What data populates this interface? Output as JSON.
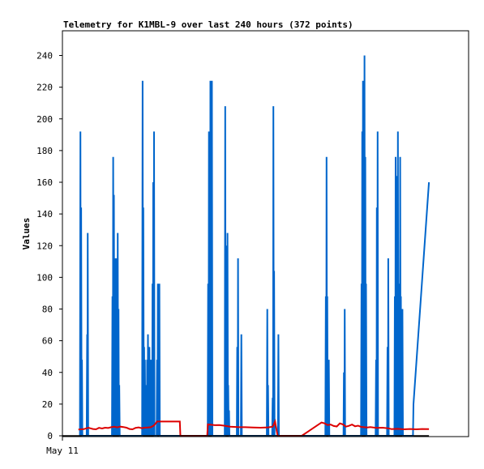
{
  "chart_data": {
    "type": "line",
    "title": "Telemetry for K1MBL-9 over last 240 hours (372 points)",
    "xlabel": "",
    "ylabel": "Values",
    "ylim": [
      0,
      250
    ],
    "xlim": [
      0,
      240
    ],
    "yticks": [
      0,
      20,
      40,
      60,
      80,
      100,
      120,
      140,
      160,
      180,
      200,
      220,
      240
    ],
    "x_tick_labels": [
      {
        "x": 0,
        "label": "May 11"
      }
    ],
    "grid": false,
    "legend": "none",
    "series": [
      {
        "color": "#0066cc",
        "style": "line",
        "points": [
          [
            11.5,
            0
          ],
          [
            11.8,
            192
          ],
          [
            12.1,
            0
          ],
          [
            12.3,
            144
          ],
          [
            12.6,
            0
          ],
          [
            12.8,
            48
          ],
          [
            13.1,
            0
          ],
          [
            15.9,
            0
          ],
          [
            16.2,
            64
          ],
          [
            16.4,
            0
          ],
          [
            16.6,
            128
          ],
          [
            16.9,
            0
          ],
          [
            32.5,
            0
          ],
          [
            32.8,
            88
          ],
          [
            33.1,
            0
          ],
          [
            33.3,
            176
          ],
          [
            33.6,
            0
          ],
          [
            33.8,
            152
          ],
          [
            34.1,
            0
          ],
          [
            34.3,
            112
          ],
          [
            34.6,
            0
          ],
          [
            34.8,
            64
          ],
          [
            35.1,
            0
          ],
          [
            35.3,
            112
          ],
          [
            35.6,
            0
          ],
          [
            35.8,
            96
          ],
          [
            36.1,
            0
          ],
          [
            36.3,
            128
          ],
          [
            36.6,
            0
          ],
          [
            36.8,
            80
          ],
          [
            37.1,
            0
          ],
          [
            37.3,
            32
          ],
          [
            37.6,
            0
          ],
          [
            52.3,
            0
          ],
          [
            52.6,
            224
          ],
          [
            52.9,
            0
          ],
          [
            53.1,
            144
          ],
          [
            53.4,
            0
          ],
          [
            53.6,
            56
          ],
          [
            53.9,
            0
          ],
          [
            54.1,
            48
          ],
          [
            54.4,
            0
          ],
          [
            54.6,
            16
          ],
          [
            54.9,
            0
          ],
          [
            55.1,
            32
          ],
          [
            55.4,
            0
          ],
          [
            55.6,
            48
          ],
          [
            55.9,
            0
          ],
          [
            56.1,
            64
          ],
          [
            56.4,
            0
          ],
          [
            56.6,
            48
          ],
          [
            56.9,
            0
          ],
          [
            57.1,
            56
          ],
          [
            57.4,
            0
          ],
          [
            57.6,
            32
          ],
          [
            57.9,
            0
          ],
          [
            58.1,
            48
          ],
          [
            58.4,
            0
          ],
          [
            58.6,
            16
          ],
          [
            58.9,
            0
          ],
          [
            59.1,
            96
          ],
          [
            59.4,
            0
          ],
          [
            59.6,
            160
          ],
          [
            59.9,
            0
          ],
          [
            60.1,
            192
          ],
          [
            60.4,
            0
          ],
          [
            61.8,
            0
          ],
          [
            62.1,
            48
          ],
          [
            62.4,
            0
          ],
          [
            62.6,
            96
          ],
          [
            62.9,
            0
          ],
          [
            63.1,
            96
          ],
          [
            63.4,
            0
          ],
          [
            63.6,
            96
          ],
          [
            63.9,
            0
          ],
          [
            95.3,
            0
          ],
          [
            95.6,
            96
          ],
          [
            95.9,
            0
          ],
          [
            96.1,
            192
          ],
          [
            96.4,
            0
          ],
          [
            96.6,
            112
          ],
          [
            96.9,
            0
          ],
          [
            97.1,
            224
          ],
          [
            97.4,
            0
          ],
          [
            97.6,
            112
          ],
          [
            97.9,
            0
          ],
          [
            98.1,
            224
          ],
          [
            98.4,
            0
          ],
          [
            106.5,
            0
          ],
          [
            106.8,
            208
          ],
          [
            107.1,
            0
          ],
          [
            107.3,
            120
          ],
          [
            107.6,
            0
          ],
          [
            107.8,
            80
          ],
          [
            108.1,
            0
          ],
          [
            108.3,
            128
          ],
          [
            108.6,
            0
          ],
          [
            108.8,
            32
          ],
          [
            109.1,
            0
          ],
          [
            109.3,
            16
          ],
          [
            109.6,
            0
          ],
          [
            114.4,
            0
          ],
          [
            114.7,
            56
          ],
          [
            115,
            0
          ],
          [
            115.2,
            112
          ],
          [
            115.5,
            0
          ],
          [
            117.1,
            0
          ],
          [
            117.4,
            64
          ],
          [
            117.7,
            0
          ],
          [
            134.1,
            0
          ],
          [
            134.4,
            80
          ],
          [
            134.7,
            0
          ],
          [
            134.9,
            32
          ],
          [
            135.2,
            0
          ],
          [
            137.6,
            0
          ],
          [
            137.9,
            24
          ],
          [
            138.2,
            0
          ],
          [
            138.4,
            208
          ],
          [
            138.7,
            0
          ],
          [
            138.9,
            104
          ],
          [
            139.2,
            0
          ],
          [
            141.4,
            0
          ],
          [
            141.7,
            64
          ],
          [
            142,
            0
          ],
          [
            172.5,
            0
          ],
          [
            172.8,
            88
          ],
          [
            173.1,
            0
          ],
          [
            173.3,
            176
          ],
          [
            173.6,
            0
          ],
          [
            173.8,
            88
          ],
          [
            174.1,
            0
          ],
          [
            174.3,
            24
          ],
          [
            174.6,
            0
          ],
          [
            174.8,
            48
          ],
          [
            175.1,
            0
          ],
          [
            184.4,
            0
          ],
          [
            184.7,
            40
          ],
          [
            185,
            0
          ],
          [
            185.2,
            80
          ],
          [
            185.5,
            0
          ],
          [
            195.9,
            0
          ],
          [
            196.2,
            96
          ],
          [
            196.5,
            0
          ],
          [
            196.7,
            192
          ],
          [
            197,
            0
          ],
          [
            197.2,
            224
          ],
          [
            197.5,
            0
          ],
          [
            197.7,
            40
          ],
          [
            198,
            0
          ],
          [
            198.2,
            240
          ],
          [
            198.5,
            0
          ],
          [
            198.7,
            176
          ],
          [
            199,
            0
          ],
          [
            199.2,
            96
          ],
          [
            199.5,
            0
          ],
          [
            205.5,
            0
          ],
          [
            205.8,
            48
          ],
          [
            206.1,
            0
          ],
          [
            206.3,
            144
          ],
          [
            206.6,
            0
          ],
          [
            206.8,
            192
          ],
          [
            207.1,
            0
          ],
          [
            213,
            0
          ],
          [
            213.3,
            56
          ],
          [
            213.6,
            0
          ],
          [
            213.8,
            112
          ],
          [
            214.1,
            0
          ],
          [
            217.8,
            0
          ],
          [
            218.1,
            88
          ],
          [
            218.4,
            0
          ],
          [
            218.6,
            176
          ],
          [
            218.9,
            0
          ],
          [
            219.1,
            164
          ],
          [
            219.4,
            0
          ],
          [
            219.6,
            64
          ],
          [
            219.9,
            0
          ],
          [
            220.1,
            192
          ],
          [
            220.4,
            0
          ],
          [
            220.6,
            96
          ],
          [
            220.9,
            0
          ],
          [
            221.1,
            48
          ],
          [
            221.4,
            0
          ],
          [
            221.6,
            176
          ],
          [
            221.9,
            0
          ],
          [
            222.1,
            88
          ],
          [
            222.4,
            0
          ],
          [
            222.6,
            40
          ],
          [
            222.9,
            0
          ],
          [
            223.1,
            80
          ],
          [
            223.4,
            0
          ],
          [
            230,
            0
          ],
          [
            230.3,
            20
          ],
          [
            240.5,
            160
          ]
        ]
      },
      {
        "color": "#dd0000",
        "style": "line",
        "points": [
          [
            10.5,
            4
          ],
          [
            14,
            4.2
          ],
          [
            17,
            5.1
          ],
          [
            18,
            4.8
          ],
          [
            20,
            4.3
          ],
          [
            22,
            4.1
          ],
          [
            24,
            5
          ],
          [
            26,
            4.6
          ],
          [
            28,
            5.1
          ],
          [
            30,
            4.9
          ],
          [
            32,
            5.4
          ],
          [
            34,
            5.7
          ],
          [
            36,
            5.3
          ],
          [
            38,
            5.8
          ],
          [
            40,
            5.5
          ],
          [
            42,
            5.1
          ],
          [
            44,
            4.3
          ],
          [
            46,
            4.1
          ],
          [
            48,
            5
          ],
          [
            50,
            5.3
          ],
          [
            52,
            4.8
          ],
          [
            54,
            5.1
          ],
          [
            56,
            5.2
          ],
          [
            58,
            5.4
          ],
          [
            60,
            6.5
          ],
          [
            61.6,
            8.3
          ],
          [
            62,
            9
          ],
          [
            77,
            9
          ],
          [
            77.4,
            0
          ],
          [
            95,
            0
          ],
          [
            95.4,
            7.2
          ],
          [
            97,
            7
          ],
          [
            100,
            6.7
          ],
          [
            103,
            6.8
          ],
          [
            106,
            6.4
          ],
          [
            110,
            5.8
          ],
          [
            115,
            5.5
          ],
          [
            120,
            5.4
          ],
          [
            125,
            5.2
          ],
          [
            130,
            5.1
          ],
          [
            135,
            5.3
          ],
          [
            138,
            5.8
          ],
          [
            139.5,
            9
          ],
          [
            140,
            6.2
          ],
          [
            141.2,
            0
          ],
          [
            157,
            0
          ],
          [
            170,
            8.4
          ],
          [
            172,
            7.8
          ],
          [
            174,
            6.8
          ],
          [
            176,
            7.1
          ],
          [
            178,
            6.2
          ],
          [
            180,
            5.9
          ],
          [
            182,
            7.8
          ],
          [
            184,
            7.2
          ],
          [
            186,
            5.8
          ],
          [
            188,
            6.3
          ],
          [
            190,
            7.1
          ],
          [
            192,
            6
          ],
          [
            194,
            6.4
          ],
          [
            196,
            5.6
          ],
          [
            198,
            5.4
          ],
          [
            200,
            5.2
          ],
          [
            202,
            5.5
          ],
          [
            206,
            5
          ],
          [
            210,
            5.1
          ],
          [
            214,
            4.7
          ],
          [
            216,
            4.2
          ],
          [
            220,
            4.4
          ],
          [
            224,
            4.1
          ],
          [
            228,
            4.3
          ],
          [
            232,
            4.1
          ],
          [
            236,
            4.3
          ],
          [
            240.5,
            4.2
          ]
        ]
      },
      {
        "color": "#000000",
        "style": "line",
        "points": [
          [
            0,
            0
          ],
          [
            240.5,
            0
          ]
        ]
      }
    ]
  }
}
